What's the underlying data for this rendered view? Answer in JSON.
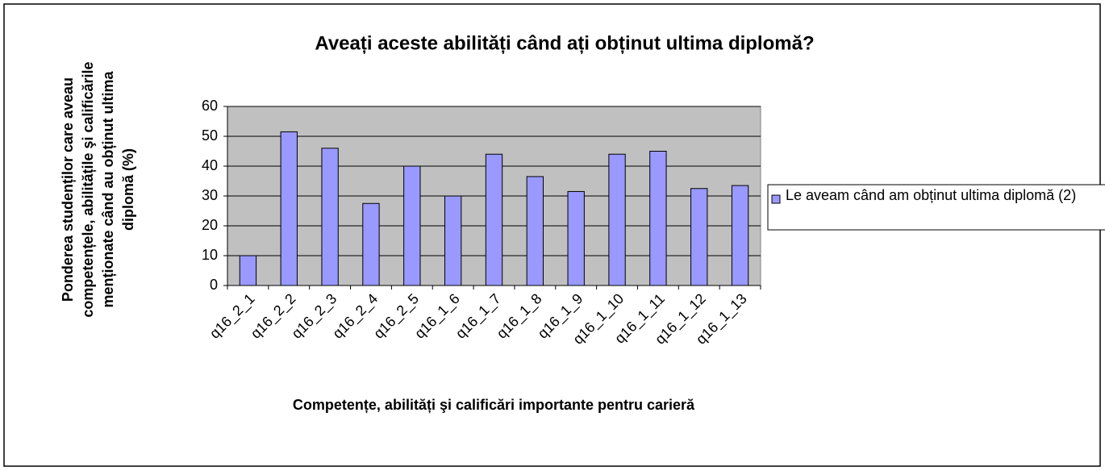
{
  "chart_data": {
    "type": "bar",
    "title": "Aveați aceste abilități când ați obținut ultima diplomă?",
    "x_label": "Competențe, abilități şi calificări importante pentru carieră",
    "y_label": "Ponderea studenților care aveau competențele, abilitățile şi calificările menționate când au obținut ultima diplomă (%)",
    "categories": [
      "q16_2_1",
      "q16_2_2",
      "q16_2_3",
      "q16_2_4",
      "q16_2_5",
      "q16_1_6",
      "q16_1_7",
      "q16_1_8",
      "q16_1_9",
      "q16_1_10",
      "q16_1_11",
      "q16_1_12",
      "q16_1_13"
    ],
    "series": [
      {
        "name": "Le aveam când am obținut ultima diplomă (2)",
        "color": "#9999ff",
        "values": [
          10,
          51.5,
          46,
          27.5,
          40,
          30,
          44,
          36.5,
          31.5,
          44,
          45,
          32.5,
          33.5
        ]
      }
    ],
    "ylim": [
      0,
      60
    ],
    "yticks": [
      0,
      10,
      20,
      30,
      40,
      50,
      60
    ],
    "grid": true,
    "legend": "right"
  }
}
